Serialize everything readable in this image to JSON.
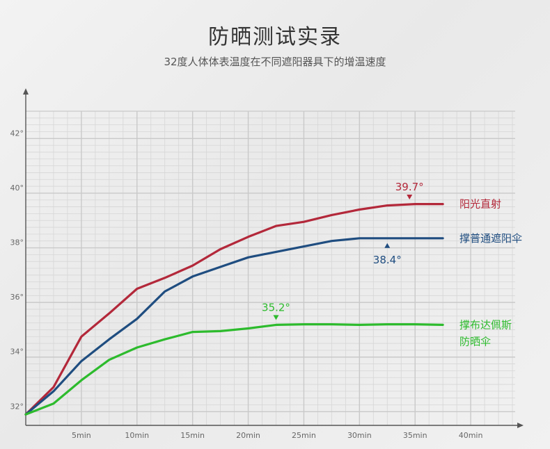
{
  "title": "防晒测试实录",
  "subtitle": "32度人体体表温度在不同遮阳器具下的增温速度",
  "colors": {
    "red": "#b3283a",
    "blue": "#1f4d80",
    "green": "#2dbb2d",
    "grid": "#c9c9c9",
    "axis": "#555555"
  },
  "chart_data": {
    "type": "line",
    "ylim": [
      31.5,
      43
    ],
    "yticks": [
      32,
      34,
      36,
      38,
      40,
      42
    ],
    "ytick_labels": [
      "32°",
      "34°",
      "36°",
      "38°",
      "40°",
      "42°"
    ],
    "xlim": [
      0,
      44
    ],
    "xticks": [
      5,
      10,
      15,
      20,
      25,
      30,
      35,
      40
    ],
    "xtick_labels": [
      "5min",
      "10min",
      "15min",
      "20min",
      "25min",
      "30min",
      "35min",
      "40min"
    ],
    "x": [
      0,
      2.5,
      5,
      7.5,
      10,
      12.5,
      15,
      17.5,
      20,
      22.5,
      25,
      27.5,
      30,
      32.5,
      35,
      37.5
    ],
    "series": [
      {
        "name": "阳光直射",
        "color": "#b3283a",
        "values": [
          31.9,
          32.9,
          34.75,
          35.6,
          36.5,
          36.9,
          37.35,
          37.95,
          38.4,
          38.8,
          38.95,
          39.2,
          39.4,
          39.55,
          39.6,
          39.6
        ],
        "peak_label": "39.7°",
        "peak_x": 34.5,
        "marker": "down"
      },
      {
        "name": "撑普通遮阳伞",
        "color": "#1f4d80",
        "values": [
          31.9,
          32.75,
          33.85,
          34.65,
          35.4,
          36.4,
          36.95,
          37.3,
          37.65,
          37.85,
          38.05,
          38.25,
          38.35,
          38.35,
          38.35,
          38.35
        ],
        "peak_label": "38.4°",
        "peak_x": 32.5,
        "marker": "up"
      },
      {
        "name": "撑布达佩斯\n防晒伞",
        "color": "#2dbb2d",
        "values": [
          31.9,
          32.3,
          33.15,
          33.9,
          34.35,
          34.65,
          34.92,
          34.95,
          35.05,
          35.18,
          35.2,
          35.2,
          35.18,
          35.2,
          35.2,
          35.18
        ],
        "peak_label": "35.2°",
        "peak_x": 22.5,
        "marker": "down"
      }
    ]
  }
}
